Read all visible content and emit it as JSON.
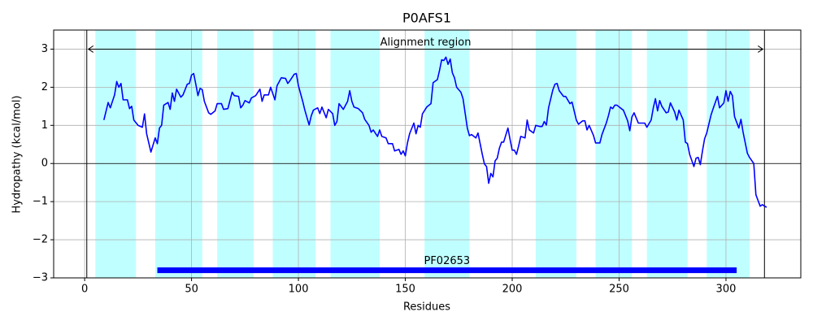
{
  "chart_data": {
    "type": "line",
    "title": "P0AFS1",
    "xlabel": "Residues",
    "ylabel": "Hydropathy (kcal/mol)",
    "x": [
      9,
      11,
      12,
      14,
      15,
      16,
      17,
      18,
      20,
      21,
      22,
      23,
      25,
      27,
      28,
      29,
      31,
      33,
      34,
      35,
      36,
      37,
      39,
      40,
      41,
      42,
      43,
      45,
      46,
      48,
      49,
      50,
      51,
      52,
      53,
      54,
      55,
      56,
      58,
      59,
      61,
      62,
      64,
      65,
      67,
      69,
      70,
      72,
      73,
      74,
      75,
      77,
      78,
      80,
      82,
      83,
      84,
      86,
      87,
      89,
      90,
      92,
      94,
      95,
      96,
      98,
      99,
      100,
      102,
      103,
      105,
      106,
      107,
      109,
      110,
      111,
      113,
      114,
      116,
      117,
      118,
      119,
      121,
      123,
      124,
      125,
      126,
      128,
      130,
      131,
      133,
      134,
      135,
      137,
      138,
      139,
      141,
      142,
      144,
      145,
      147,
      148,
      149,
      150,
      151,
      152,
      154,
      155,
      156,
      157,
      158,
      160,
      162,
      163,
      165,
      166,
      167,
      168,
      169,
      170,
      171,
      172,
      173,
      174,
      176,
      177,
      179,
      180,
      181,
      183,
      184,
      186,
      187,
      188,
      189,
      190,
      191,
      192,
      193,
      194,
      195,
      196,
      198,
      199,
      200,
      201,
      202,
      203,
      204,
      206,
      207,
      208,
      210,
      211,
      213,
      214,
      215,
      216,
      217,
      219,
      220,
      221,
      222,
      224,
      225,
      227,
      228,
      230,
      231,
      233,
      234,
      235,
      236,
      238,
      239,
      241,
      242,
      244,
      245,
      246,
      247,
      248,
      249,
      251,
      252,
      254,
      255,
      256,
      257,
      259,
      260,
      262,
      263,
      265,
      266,
      267,
      268,
      269,
      270,
      272,
      273,
      274,
      276,
      277,
      278,
      280,
      281,
      282,
      283,
      285,
      286,
      287,
      288,
      289,
      290,
      291,
      293,
      294,
      296,
      297,
      299,
      300,
      301,
      302,
      303,
      304,
      306,
      307,
      308,
      310,
      311,
      313,
      314,
      315,
      316,
      317,
      319
    ],
    "values": [
      1.14,
      1.6,
      1.46,
      1.8,
      2.15,
      2.0,
      2.1,
      1.67,
      1.67,
      1.44,
      1.5,
      1.14,
      1.0,
      0.95,
      1.3,
      0.78,
      0.3,
      0.67,
      0.52,
      0.93,
      1.0,
      1.53,
      1.6,
      1.42,
      1.85,
      1.63,
      1.95,
      1.74,
      1.8,
      2.08,
      2.1,
      2.32,
      2.36,
      2.08,
      1.78,
      1.97,
      1.94,
      1.63,
      1.33,
      1.29,
      1.38,
      1.57,
      1.57,
      1.42,
      1.44,
      1.87,
      1.78,
      1.76,
      1.46,
      1.53,
      1.65,
      1.59,
      1.72,
      1.78,
      1.95,
      1.63,
      1.8,
      1.8,
      2.0,
      1.67,
      2.04,
      2.25,
      2.23,
      2.1,
      2.17,
      2.34,
      2.36,
      2.04,
      1.63,
      1.4,
      1.01,
      1.25,
      1.4,
      1.46,
      1.31,
      1.48,
      1.2,
      1.42,
      1.31,
      1.0,
      1.1,
      1.57,
      1.42,
      1.63,
      1.91,
      1.63,
      1.48,
      1.44,
      1.33,
      1.16,
      1.0,
      0.82,
      0.88,
      0.71,
      0.88,
      0.71,
      0.67,
      0.52,
      0.52,
      0.33,
      0.37,
      0.24,
      0.33,
      0.2,
      0.54,
      0.78,
      1.06,
      0.78,
      1.0,
      0.95,
      1.3,
      1.48,
      1.57,
      2.12,
      2.2,
      2.44,
      2.72,
      2.7,
      2.79,
      2.6,
      2.74,
      2.38,
      2.25,
      2.0,
      1.87,
      1.7,
      0.93,
      0.73,
      0.76,
      0.67,
      0.8,
      0.24,
      -0.01,
      -0.08,
      -0.52,
      -0.26,
      -0.35,
      0.07,
      0.14,
      0.4,
      0.56,
      0.56,
      0.93,
      0.63,
      0.35,
      0.35,
      0.24,
      0.46,
      0.71,
      0.67,
      1.14,
      0.88,
      0.8,
      1.0,
      0.97,
      0.97,
      1.1,
      1.01,
      1.46,
      1.93,
      2.08,
      2.1,
      1.91,
      1.76,
      1.76,
      1.57,
      1.61,
      1.14,
      1.03,
      1.12,
      1.12,
      0.88,
      1.0,
      0.74,
      0.54,
      0.54,
      0.76,
      1.06,
      1.25,
      1.48,
      1.44,
      1.53,
      1.53,
      1.44,
      1.4,
      1.12,
      0.86,
      1.22,
      1.33,
      1.06,
      1.06,
      1.06,
      0.95,
      1.14,
      1.46,
      1.7,
      1.38,
      1.65,
      1.5,
      1.33,
      1.35,
      1.59,
      1.35,
      1.14,
      1.4,
      1.14,
      0.56,
      0.52,
      0.24,
      -0.08,
      0.14,
      0.16,
      -0.03,
      0.33,
      0.65,
      0.8,
      1.27,
      1.44,
      1.76,
      1.46,
      1.59,
      1.91,
      1.63,
      1.89,
      1.78,
      1.23,
      0.93,
      1.16,
      0.82,
      0.27,
      0.16,
      0.0,
      -0.82,
      -0.97,
      -1.12,
      -1.08,
      -1.15
    ],
    "color": "#0000ff",
    "xlim": [
      -14.5,
      335
    ],
    "ylim": [
      -3,
      3.5
    ],
    "xticks": [
      0,
      50,
      100,
      150,
      200,
      250,
      300
    ],
    "yticks": [
      {
        "value": -3,
        "label": "−3"
      },
      {
        "value": -2,
        "label": "−2"
      },
      {
        "value": -1,
        "label": "−1"
      },
      0,
      1,
      2,
      3
    ],
    "grid": true,
    "hline": 0,
    "span_color": "#c0ffff",
    "spans": [
      [
        5,
        24
      ],
      [
        33,
        55
      ],
      [
        62,
        79
      ],
      [
        88,
        108
      ],
      [
        115,
        138
      ],
      [
        159,
        180
      ],
      [
        211,
        230
      ],
      [
        239,
        256
      ],
      [
        263,
        282
      ],
      [
        291,
        311
      ]
    ],
    "alignment": {
      "label": "Alignment region",
      "start": 1,
      "end": 318,
      "y": 3
    },
    "domain": {
      "label": "PF02653",
      "start": 34,
      "end": 305,
      "y": -2.8,
      "color": "#0000ff"
    }
  }
}
